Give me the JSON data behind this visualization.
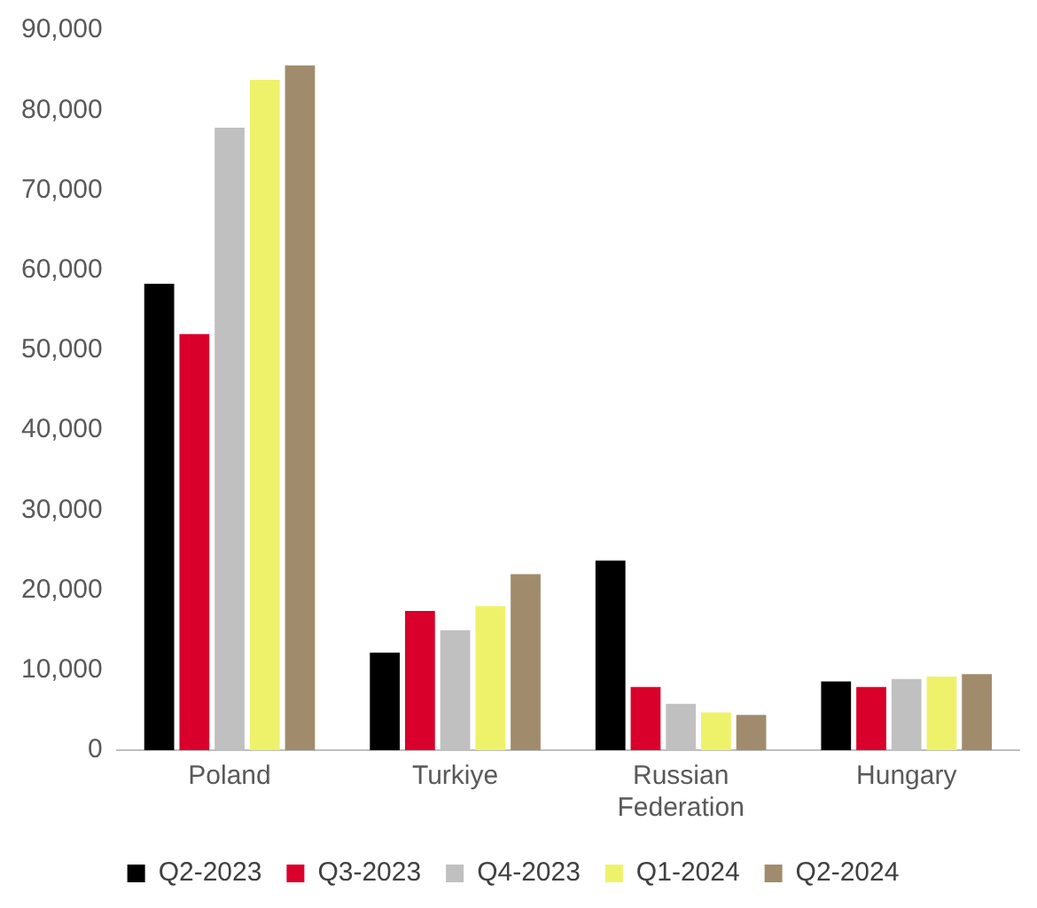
{
  "chart_data": {
    "type": "bar",
    "categories": [
      "Poland",
      "Turkiye",
      "Russian Federation",
      "Hungary"
    ],
    "series": [
      {
        "name": "Q2-2023",
        "color": "#000000",
        "values": [
          58300,
          12200,
          23700,
          8600
        ]
      },
      {
        "name": "Q3-2023",
        "color": "#d9002b",
        "values": [
          52000,
          17400,
          7900,
          7900
        ]
      },
      {
        "name": "Q4-2023",
        "color": "#c0c0c0",
        "values": [
          77800,
          15000,
          5800,
          8900
        ]
      },
      {
        "name": "Q1-2024",
        "color": "#eef26b",
        "values": [
          83800,
          18000,
          4700,
          9200
        ]
      },
      {
        "name": "Q2-2024",
        "color": "#a08c6c",
        "values": [
          85600,
          22000,
          4400,
          9500
        ]
      }
    ],
    "ylim": [
      0,
      90000
    ],
    "yticks": [
      0,
      {
        "value": 10000,
        "label": "10,000"
      },
      {
        "value": 20000,
        "label": "20,000"
      },
      {
        "value": 30000,
        "label": "30,000"
      },
      {
        "value": 40000,
        "label": "40,000"
      },
      {
        "value": 50000,
        "label": "50,000"
      },
      {
        "value": 60000,
        "label": "60,000"
      },
      {
        "value": 70000,
        "label": "70,000"
      },
      {
        "value": 80000,
        "label": "80,000"
      },
      {
        "value": 90000,
        "label": "90,000"
      }
    ],
    "grid": false,
    "legend": "bottom"
  }
}
